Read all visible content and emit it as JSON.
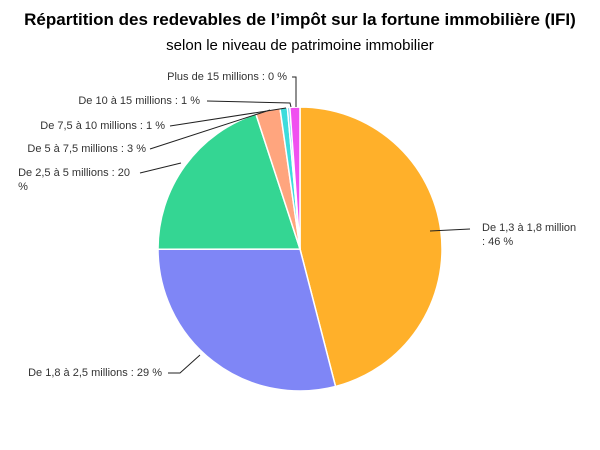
{
  "chart_data": {
    "type": "pie",
    "title": "Répartition des redevables de l’impôt sur la fortune immobilière (IFI)",
    "subtitle": "selon le niveau de patrimoine immobilier",
    "legend": "none",
    "slices": [
      {
        "name": "De 1,3 à 1,8 million",
        "value": 46,
        "label_line1": "De 1,3 à 1,8 million",
        "label_line2": ": 46 %",
        "color": "#FFB02A"
      },
      {
        "name": "De 1,8 à 2,5 millions",
        "value": 29,
        "label_line1": "De 1,8 à 2,5 millions : 29 %",
        "label_line2": "",
        "color": "#7F86F6"
      },
      {
        "name": "De 2,5 à 5 millions",
        "value": 20,
        "label_line1": "De 2,5 à 5 millions : 20",
        "label_line2": "%",
        "color": "#34D693"
      },
      {
        "name": "De 5 à 7,5 millions",
        "value": 3,
        "label_line1": "De 5 à 7,5 millions : 3 %",
        "label_line2": "",
        "color": "#FFA57E"
      },
      {
        "name": "De 7,5 à 10 millions",
        "value": 1,
        "label_line1": "De 7,5 à 10 millions : 1 %",
        "label_line2": "",
        "color": "#3DDCDC"
      },
      {
        "name": "De 10 à 15 millions",
        "value": 1,
        "label_line1": "De 10 à 15 millions : 1 %",
        "label_line2": "",
        "color": "#5CC8F0"
      },
      {
        "name": "Plus de 15 millions",
        "value": 0,
        "label_line1": "Plus de 15 millions : 0 %",
        "label_line2": "",
        "color": "#F050F0"
      }
    ]
  }
}
